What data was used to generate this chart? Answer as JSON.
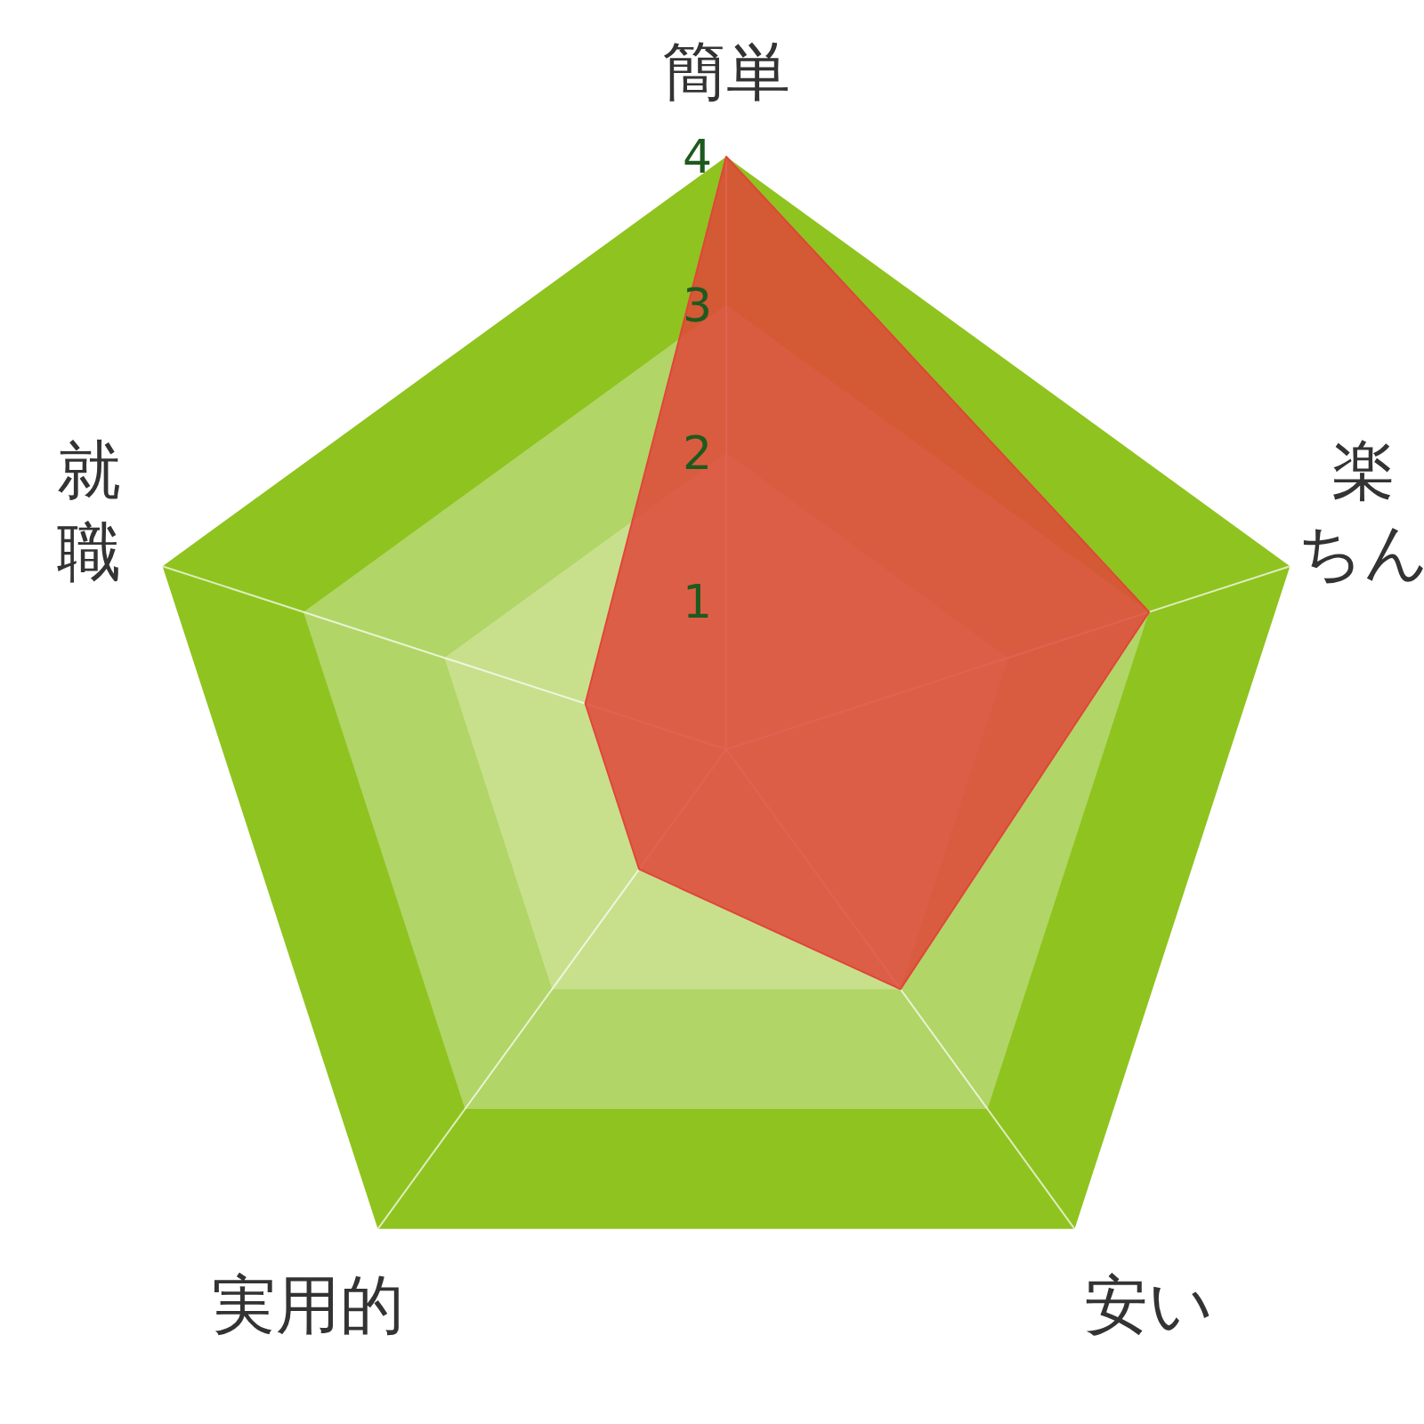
{
  "chart_data": {
    "type": "radar",
    "categories": [
      "簡単",
      "楽ちん",
      "安い",
      "実用的",
      "就職"
    ],
    "series": [
      {
        "color": "#e0463a",
        "values": [
          4,
          3,
          2,
          1,
          1
        ]
      }
    ],
    "ylim": [
      0,
      4
    ],
    "yticks": [
      1,
      2,
      3,
      4
    ],
    "grid": true
  }
}
